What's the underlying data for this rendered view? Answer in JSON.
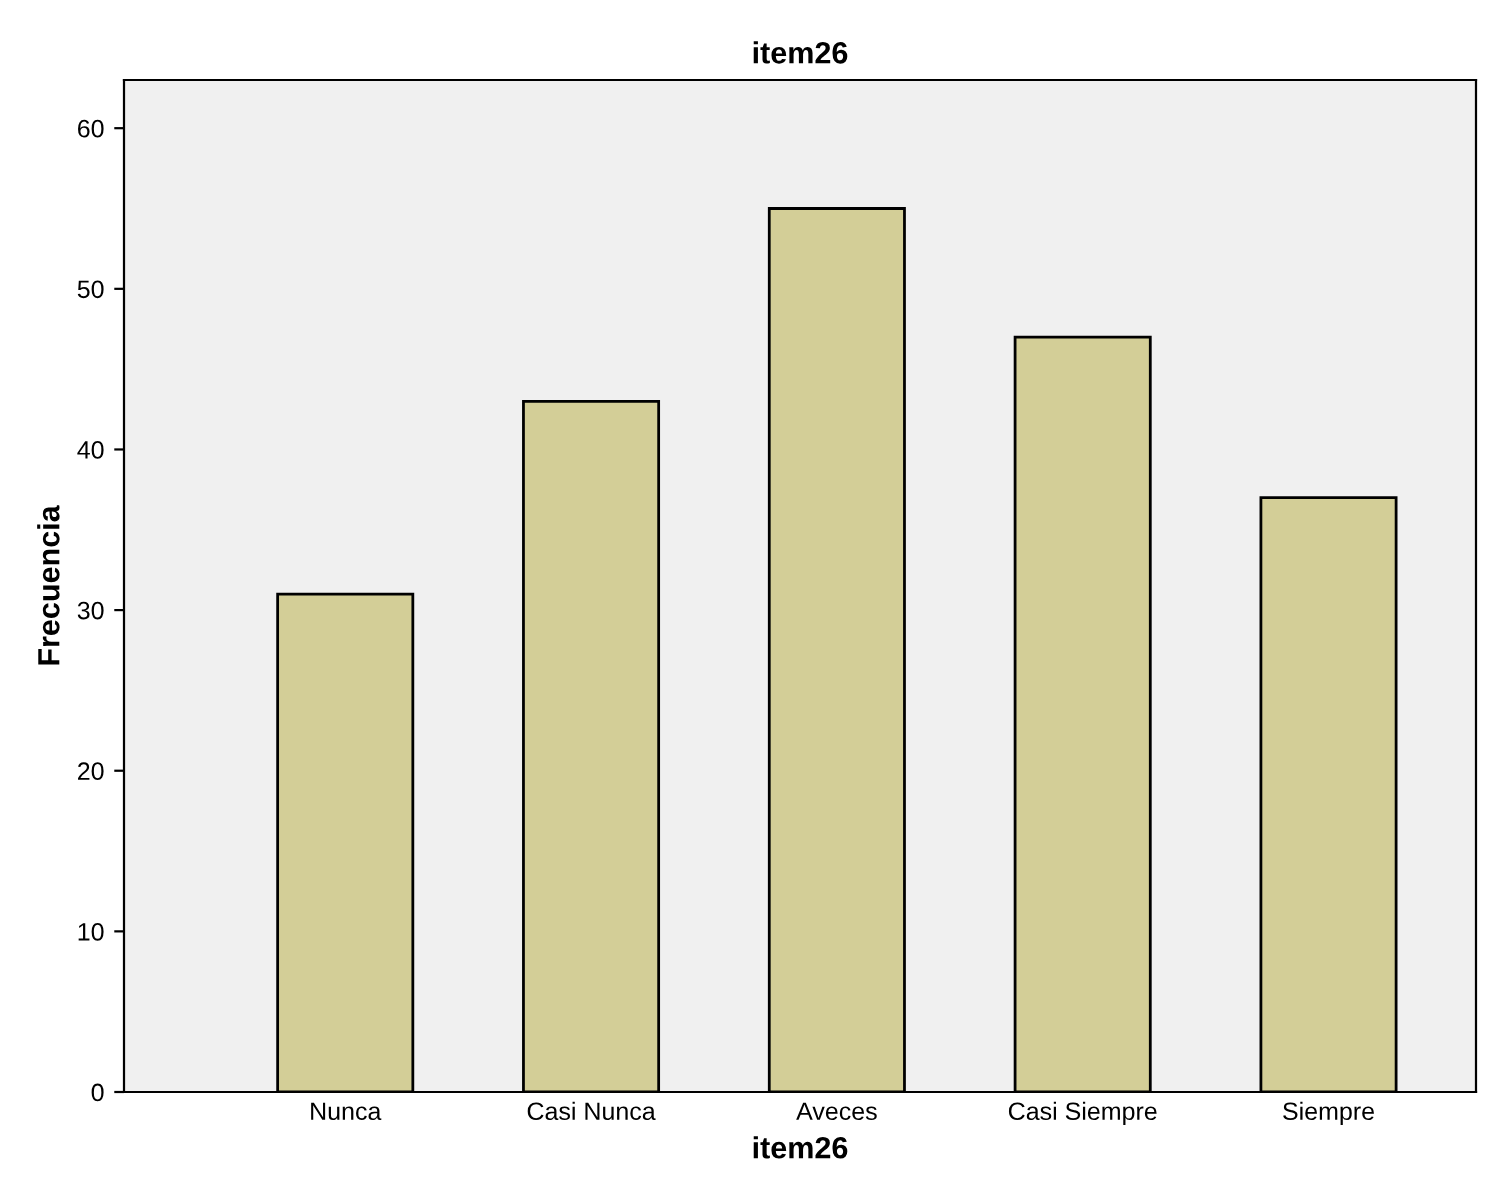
{
  "chart_data": {
    "type": "bar",
    "title": "item26",
    "xlabel": "item26",
    "ylabel": "Frecuencia",
    "categories": [
      "Nunca",
      "Casi Nunca",
      "Aveces",
      "Casi Siempre",
      "Siempre"
    ],
    "values": [
      31,
      43,
      55,
      47,
      37
    ],
    "color": "#d3ce97",
    "ylim": [
      0,
      63
    ],
    "yticks": [
      0,
      10,
      20,
      30,
      40,
      50,
      60
    ],
    "grid": false
  }
}
